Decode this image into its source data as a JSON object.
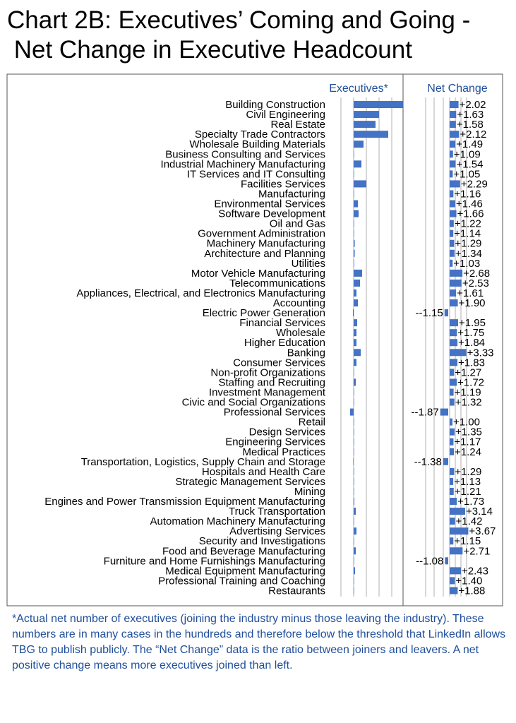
{
  "title": {
    "line1": "Chart 2B: Executives’ Coming and Going -",
    "line2": " Net Change in Executive Headcount"
  },
  "footnote": "*Actual net number of  executives (joining the industry minus those leaving the industry).  These numbers are in many cases in the hundreds and therefore below the threshold that LinkedIn allows TBG to publish publicly.  The “Net Change” data is the ratio between joiners and leavers.  A net positive  change means more executives joined than left.",
  "colors": {
    "bar": "#4472c4",
    "header": "#1f4e9c",
    "gridline": "#b0b0b0",
    "frame": "#555555"
  },
  "chart_data": {
    "type": "bar",
    "orientation": "horizontal",
    "categories": [
      "Building Construction",
      "Civil Engineering",
      "Real Estate",
      "Specialty Trade Contractors",
      "Wholesale Building Materials",
      "Business Consulting and Services",
      "Industrial Machinery Manufacturing",
      "IT Services and IT Consulting",
      "Facilities Services",
      "Manufacturing",
      "Environmental Services",
      "Software Development",
      "Oil and Gas",
      "Government Administration",
      "Machinery Manufacturing",
      "Architecture and Planning",
      "Utilities",
      "Motor Vehicle Manufacturing",
      "Telecommunications",
      "Appliances, Electrical, and Electronics Manufacturing",
      "Accounting",
      "Electric Power Generation",
      "Financial Services",
      "Wholesale",
      "Higher Education",
      "Banking",
      "Consumer Services",
      "Non-profit Organizations",
      "Staffing and Recruiting",
      "Investment Management",
      "Civic and Social Organizations",
      "Professional Services",
      "Retail",
      "Design Services",
      "Engineering Services",
      "Medical Practices",
      "Transportation, Logistics, Supply Chain and Storage",
      "Hospitals and Health Care",
      "Strategic Management Services",
      "Mining",
      "Engines and Power Transmission Equipment Manufacturing",
      "Truck Transportation",
      "Automation Machinery Manufacturing",
      "Advertising Services",
      "Security and Investigations",
      "Food and Beverage Manufacturing",
      "Furniture and Home Furnishings Manufacturing",
      "Medical Equipment Manufacturing",
      "Professional Training and Coaching",
      "Restaurants"
    ],
    "panels": [
      {
        "name": "Executives*",
        "values": [
          70,
          36,
          31,
          49,
          14,
          0.6,
          11,
          0.6,
          18,
          0.6,
          6,
          7,
          0.5,
          0.3,
          1.5,
          1.5,
          0.3,
          12,
          9,
          4,
          6,
          -1,
          5,
          4,
          4,
          10,
          4,
          0.3,
          3,
          0.3,
          0.3,
          -5,
          0.3,
          0.3,
          0.3,
          0.3,
          -0.3,
          0.3,
          0.3,
          0.3,
          1,
          3,
          0.3,
          4,
          0.3,
          3,
          0.3,
          2,
          0.3,
          0.3
        ]
      },
      {
        "name": "Net Change",
        "values": [
          2.02,
          1.63,
          1.58,
          2.12,
          1.49,
          1.09,
          1.54,
          1.05,
          2.29,
          1.16,
          1.46,
          1.66,
          1.22,
          1.14,
          1.29,
          1.34,
          1.03,
          2.68,
          2.53,
          1.61,
          1.9,
          -1.15,
          1.95,
          1.75,
          1.84,
          3.33,
          1.83,
          1.27,
          1.72,
          1.19,
          1.32,
          -1.87,
          1.0,
          1.35,
          1.17,
          1.24,
          -1.38,
          1.29,
          1.13,
          1.21,
          1.73,
          3.14,
          1.42,
          3.67,
          1.15,
          2.71,
          -1.08,
          2.43,
          1.4,
          1.88
        ],
        "labels": [
          "+2.02",
          "+1.63",
          "+1.58",
          "+2.12",
          "+1.49",
          "+1.09",
          "+1.54",
          "+1.05",
          "+2.29",
          "+1.16",
          "+1.46",
          "+1.66",
          "+1.22",
          "+1.14",
          "+1.29",
          "+1.34",
          "+1.03",
          "+2.68",
          "+2.53",
          "+1.61",
          "+1.90",
          "--1.15",
          "+1.95",
          "+1.75",
          "+1.84",
          "+3.33",
          "+1.83",
          "+1.27",
          "+1.72",
          "+1.19",
          "+1.32",
          "--1.87",
          "+1.00",
          "+1.35",
          "+1.17",
          "+1.24",
          "--1.38",
          "+1.29",
          "+1.13",
          "+1.21",
          "+1.73",
          "+3.14",
          "+1.42",
          "+3.67",
          "+1.15",
          "+2.71",
          "--1.08",
          "+2.43",
          "+1.40",
          "+1.88"
        ]
      }
    ],
    "grid": true,
    "legend": "none"
  }
}
